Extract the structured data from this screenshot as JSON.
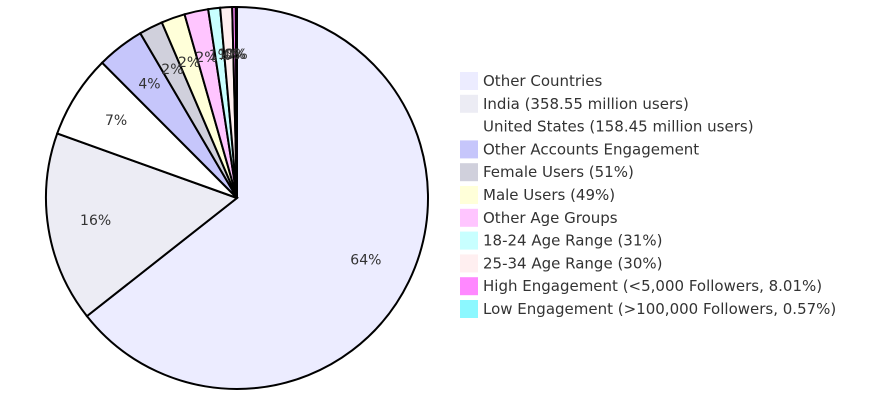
{
  "chart_data": {
    "type": "pie",
    "title": "",
    "slices": [
      {
        "label": "Other Countries",
        "value": 64,
        "display": "64%",
        "color": "#ececff"
      },
      {
        "label": "India (358.55 million users)",
        "value": 16,
        "display": "16%",
        "color": "#ececf4"
      },
      {
        "label": "United States (158.45 million users)",
        "value": 7,
        "display": "7%",
        "color": "#ffffff"
      },
      {
        "label": "Other Accounts Engagement",
        "value": 4,
        "display": "4%",
        "color": "#c6c6fb"
      },
      {
        "label": "Female Users (51%)",
        "value": 2,
        "display": "2%",
        "color": "#d0d0dc"
      },
      {
        "label": "Male Users (49%)",
        "value": 2,
        "display": "2%",
        "color": "#ffffd9"
      },
      {
        "label": "Other Age Groups",
        "value": 2,
        "display": "2%",
        "color": "#ffc5ff"
      },
      {
        "label": "18-24 Age Range (31%)",
        "value": 1,
        "display": "1%",
        "color": "#c8ffff"
      },
      {
        "label": "25-34 Age Range (30%)",
        "value": 1,
        "display": "1%",
        "color": "#ffeff0"
      },
      {
        "label": "High Engagement (<5,000 Followers, 8.01%)",
        "value": 0.3,
        "display": "0%",
        "color": "#ff88ff"
      },
      {
        "label": "Low Engagement (>100,000 Followers, 0.57%)",
        "value": 0.1,
        "display": "0%",
        "color": "#8cf8ff"
      }
    ],
    "legend_position": "right"
  }
}
